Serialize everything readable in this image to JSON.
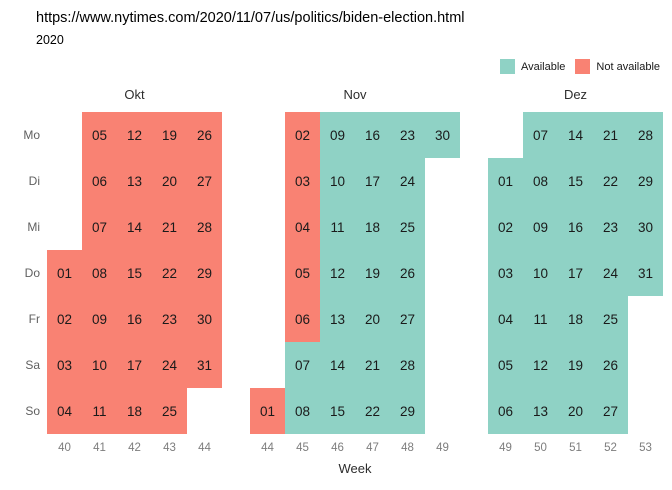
{
  "chart_data": {
    "type": "heatmap",
    "subtype": "calendar-availability",
    "title": "https://www.nytimes.com/2020/11/07/us/politics/biden-election.html",
    "subtitle": "2020",
    "xlabel": "Week",
    "day_labels": [
      "Mo",
      "Di",
      "Mi",
      "Do",
      "Fr",
      "Sa",
      "So"
    ],
    "legend": [
      {
        "key": "available",
        "label": "Available",
        "color": "#8FD2C5"
      },
      {
        "key": "not_available",
        "label": "Not available",
        "color": "#F98273"
      }
    ],
    "months": [
      {
        "name": "Okt",
        "weeks": [
          {
            "week": "40",
            "cells": [
              {
                "dow": 3,
                "date": "01",
                "available": false
              },
              {
                "dow": 4,
                "date": "02",
                "available": false
              },
              {
                "dow": 5,
                "date": "03",
                "available": false
              },
              {
                "dow": 6,
                "date": "04",
                "available": false
              }
            ]
          },
          {
            "week": "41",
            "cells": [
              {
                "dow": 0,
                "date": "05",
                "available": false
              },
              {
                "dow": 1,
                "date": "06",
                "available": false
              },
              {
                "dow": 2,
                "date": "07",
                "available": false
              },
              {
                "dow": 3,
                "date": "08",
                "available": false
              },
              {
                "dow": 4,
                "date": "09",
                "available": false
              },
              {
                "dow": 5,
                "date": "10",
                "available": false
              },
              {
                "dow": 6,
                "date": "11",
                "available": false
              }
            ]
          },
          {
            "week": "42",
            "cells": [
              {
                "dow": 0,
                "date": "12",
                "available": false
              },
              {
                "dow": 1,
                "date": "13",
                "available": false
              },
              {
                "dow": 2,
                "date": "14",
                "available": false
              },
              {
                "dow": 3,
                "date": "15",
                "available": false
              },
              {
                "dow": 4,
                "date": "16",
                "available": false
              },
              {
                "dow": 5,
                "date": "17",
                "available": false
              },
              {
                "dow": 6,
                "date": "18",
                "available": false
              }
            ]
          },
          {
            "week": "43",
            "cells": [
              {
                "dow": 0,
                "date": "19",
                "available": false
              },
              {
                "dow": 1,
                "date": "20",
                "available": false
              },
              {
                "dow": 2,
                "date": "21",
                "available": false
              },
              {
                "dow": 3,
                "date": "22",
                "available": false
              },
              {
                "dow": 4,
                "date": "23",
                "available": false
              },
              {
                "dow": 5,
                "date": "24",
                "available": false
              },
              {
                "dow": 6,
                "date": "25",
                "available": false
              }
            ]
          },
          {
            "week": "44",
            "cells": [
              {
                "dow": 0,
                "date": "26",
                "available": false
              },
              {
                "dow": 1,
                "date": "27",
                "available": false
              },
              {
                "dow": 2,
                "date": "28",
                "available": false
              },
              {
                "dow": 3,
                "date": "29",
                "available": false
              },
              {
                "dow": 4,
                "date": "30",
                "available": false
              },
              {
                "dow": 5,
                "date": "31",
                "available": false
              }
            ]
          }
        ]
      },
      {
        "name": "Nov",
        "weeks": [
          {
            "week": "44",
            "cells": [
              {
                "dow": 6,
                "date": "01",
                "available": false
              }
            ]
          },
          {
            "week": "45",
            "cells": [
              {
                "dow": 0,
                "date": "02",
                "available": false
              },
              {
                "dow": 1,
                "date": "03",
                "available": false
              },
              {
                "dow": 2,
                "date": "04",
                "available": false
              },
              {
                "dow": 3,
                "date": "05",
                "available": false
              },
              {
                "dow": 4,
                "date": "06",
                "available": false
              },
              {
                "dow": 5,
                "date": "07",
                "available": true
              },
              {
                "dow": 6,
                "date": "08",
                "available": true
              }
            ]
          },
          {
            "week": "46",
            "cells": [
              {
                "dow": 0,
                "date": "09",
                "available": true
              },
              {
                "dow": 1,
                "date": "10",
                "available": true
              },
              {
                "dow": 2,
                "date": "11",
                "available": true
              },
              {
                "dow": 3,
                "date": "12",
                "available": true
              },
              {
                "dow": 4,
                "date": "13",
                "available": true
              },
              {
                "dow": 5,
                "date": "14",
                "available": true
              },
              {
                "dow": 6,
                "date": "15",
                "available": true
              }
            ]
          },
          {
            "week": "47",
            "cells": [
              {
                "dow": 0,
                "date": "16",
                "available": true
              },
              {
                "dow": 1,
                "date": "17",
                "available": true
              },
              {
                "dow": 2,
                "date": "18",
                "available": true
              },
              {
                "dow": 3,
                "date": "19",
                "available": true
              },
              {
                "dow": 4,
                "date": "20",
                "available": true
              },
              {
                "dow": 5,
                "date": "21",
                "available": true
              },
              {
                "dow": 6,
                "date": "22",
                "available": true
              }
            ]
          },
          {
            "week": "48",
            "cells": [
              {
                "dow": 0,
                "date": "23",
                "available": true
              },
              {
                "dow": 1,
                "date": "24",
                "available": true
              },
              {
                "dow": 2,
                "date": "25",
                "available": true
              },
              {
                "dow": 3,
                "date": "26",
                "available": true
              },
              {
                "dow": 4,
                "date": "27",
                "available": true
              },
              {
                "dow": 5,
                "date": "28",
                "available": true
              },
              {
                "dow": 6,
                "date": "29",
                "available": true
              }
            ]
          },
          {
            "week": "49",
            "cells": [
              {
                "dow": 0,
                "date": "30",
                "available": true
              }
            ]
          }
        ]
      },
      {
        "name": "Dez",
        "weeks": [
          {
            "week": "49",
            "cells": [
              {
                "dow": 1,
                "date": "01",
                "available": true
              },
              {
                "dow": 2,
                "date": "02",
                "available": true
              },
              {
                "dow": 3,
                "date": "03",
                "available": true
              },
              {
                "dow": 4,
                "date": "04",
                "available": true
              },
              {
                "dow": 5,
                "date": "05",
                "available": true
              },
              {
                "dow": 6,
                "date": "06",
                "available": true
              }
            ]
          },
          {
            "week": "50",
            "cells": [
              {
                "dow": 0,
                "date": "07",
                "available": true
              },
              {
                "dow": 1,
                "date": "08",
                "available": true
              },
              {
                "dow": 2,
                "date": "09",
                "available": true
              },
              {
                "dow": 3,
                "date": "10",
                "available": true
              },
              {
                "dow": 4,
                "date": "11",
                "available": true
              },
              {
                "dow": 5,
                "date": "12",
                "available": true
              },
              {
                "dow": 6,
                "date": "13",
                "available": true
              }
            ]
          },
          {
            "week": "51",
            "cells": [
              {
                "dow": 0,
                "date": "14",
                "available": true
              },
              {
                "dow": 1,
                "date": "15",
                "available": true
              },
              {
                "dow": 2,
                "date": "16",
                "available": true
              },
              {
                "dow": 3,
                "date": "17",
                "available": true
              },
              {
                "dow": 4,
                "date": "18",
                "available": true
              },
              {
                "dow": 5,
                "date": "19",
                "available": true
              },
              {
                "dow": 6,
                "date": "20",
                "available": true
              }
            ]
          },
          {
            "week": "52",
            "cells": [
              {
                "dow": 0,
                "date": "21",
                "available": true
              },
              {
                "dow": 1,
                "date": "22",
                "available": true
              },
              {
                "dow": 2,
                "date": "23",
                "available": true
              },
              {
                "dow": 3,
                "date": "24",
                "available": true
              },
              {
                "dow": 4,
                "date": "25",
                "available": true
              },
              {
                "dow": 5,
                "date": "26",
                "available": true
              },
              {
                "dow": 6,
                "date": "27",
                "available": true
              }
            ]
          },
          {
            "week": "53",
            "cells": [
              {
                "dow": 0,
                "date": "28",
                "available": true
              },
              {
                "dow": 1,
                "date": "29",
                "available": true
              },
              {
                "dow": 2,
                "date": "30",
                "available": true
              },
              {
                "dow": 3,
                "date": "31",
                "available": true
              }
            ]
          }
        ]
      }
    ]
  }
}
